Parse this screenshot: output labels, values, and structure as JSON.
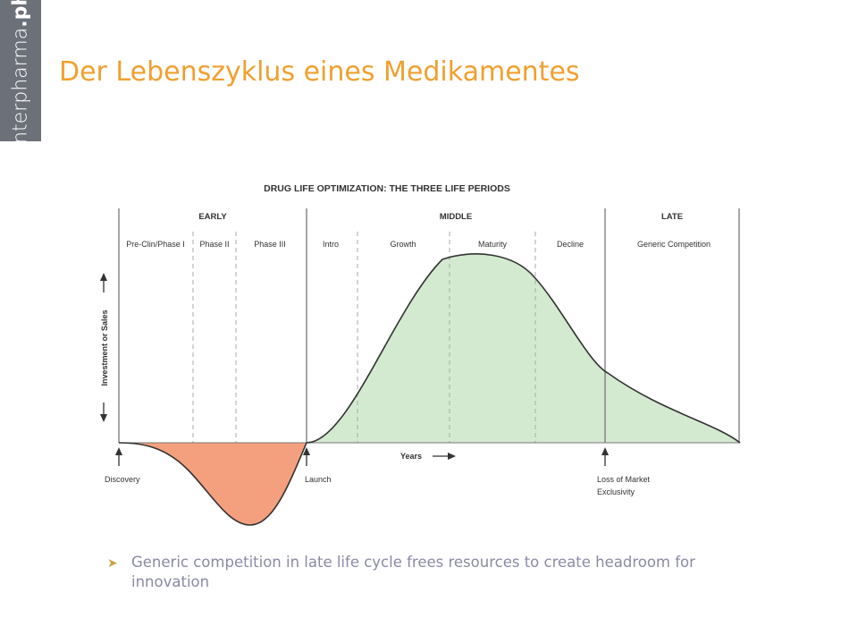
{
  "logo": {
    "text_main": "interpharma",
    "text_dot": ".",
    "text_bold": "ph"
  },
  "slide": {
    "title": "Der Lebenszyklus eines Medikamentes"
  },
  "diagram": {
    "title": "DRUG LIFE OPTIMIZATION: THE THREE LIFE PERIODS",
    "periods": [
      "EARLY",
      "MIDDLE",
      "LATE"
    ],
    "phases": [
      "Pre-Clin/Phase I",
      "Phase II",
      "Phase III",
      "Intro",
      "Growth",
      "Maturity",
      "Decline",
      "Generic Competition"
    ],
    "y_axis_label": "Investment or Sales",
    "x_axis_label": "Years",
    "milestones": {
      "discovery": "Discovery",
      "launch": "Launch",
      "loss_line1": "Loss of Market",
      "loss_line2": "Exclusivity"
    },
    "colors": {
      "investment": "#f4a07e",
      "sales": "#d3ead0",
      "curve": "#333333"
    }
  },
  "bullets": [
    {
      "text": "Generic competition in late life cycle frees resources to create headroom for innovation"
    }
  ]
}
